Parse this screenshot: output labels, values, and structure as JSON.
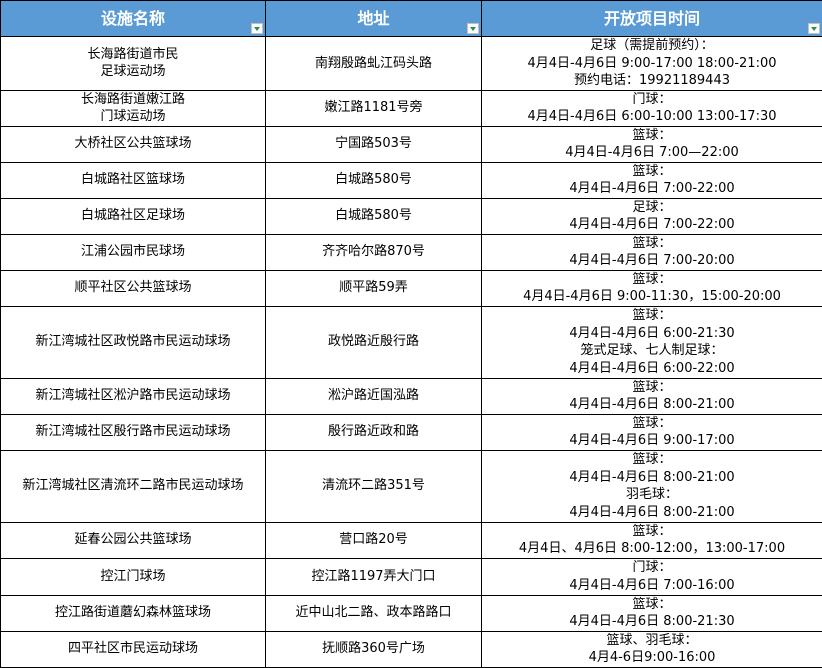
{
  "header": {
    "name": "设施名称",
    "address": "地址",
    "hours": "开放项目时间"
  },
  "header_color": "#5b9bd5",
  "rows": [
    {
      "name": "长海路街道市民\n足球运动场",
      "address": "南翔殷路虬江码头路",
      "hours": "足球（需提前预约）：\n4月4日-4月6日 9:00-17:00 18:00-21:00\n预约电话：19921189443"
    },
    {
      "name": "长海路街道嫩江路\n门球运动场",
      "address": "嫩江路1181号旁",
      "hours": "门球：\n4月4日-4月6日 6:00-10:00 13:00-17:30"
    },
    {
      "name": "大桥社区公共篮球场",
      "address": "宁国路503号",
      "hours": "篮球：\n4月4日-4月6日 7:00—22:00"
    },
    {
      "name": "白城路社区篮球场",
      "address": "白城路580号",
      "hours": "篮球：\n4月4日-4月6日 7:00-22:00"
    },
    {
      "name": "白城路社区足球场",
      "address": "白城路580号",
      "hours": "足球：\n4月4日-4月6日 7:00-22:00"
    },
    {
      "name": "江浦公园市民球场",
      "address": "齐齐哈尔路870号",
      "hours": "篮球：\n4月4日-4月6日 7:00-20:00"
    },
    {
      "name": "顺平社区公共篮球场",
      "address": "顺平路59弄",
      "hours": "篮球：\n4月4日-4月6日 9:00-11:30，15:00-20:00"
    },
    {
      "name": "新江湾城社区政悦路市民运动球场",
      "address": "政悦路近殷行路",
      "hours": "篮球：\n4月4日-4月6日 6:00-21:30\n笼式足球、七人制足球：\n4月4日-4月6日 6:00-22:00"
    },
    {
      "name": "新江湾城社区淞沪路市民运动球场",
      "address": "淞沪路近国泓路",
      "hours": "篮球：\n4月4日-4月6日 8:00-21:00"
    },
    {
      "name": "新江湾城社区殷行路市民运动球场",
      "address": "殷行路近政和路",
      "hours": "篮球：\n4月4日-4月6日 9:00-17:00"
    },
    {
      "name": "新江湾城社区清流环二路市民运动球场",
      "address": "清流环二路351号",
      "hours": "篮球：\n4月4日-4月6日 8:00-21:00\n羽毛球：\n4月4日-4月6日 8:00-21:00"
    },
    {
      "name": "延春公园公共篮球场",
      "address": "营口路20号",
      "hours": "篮球：\n4月4日、4月6日 8:00-12:00，13:00-17:00"
    },
    {
      "name": "控江门球场",
      "address": "控江路1197弄大门口",
      "hours": "门球：\n4月4日-4月6日 7:00-16:00"
    },
    {
      "name": "控江路街道蘑幻森林篮球场",
      "address": "近中山北二路、政本路路口",
      "hours": "篮球：\n4月4日-4月6日 8:00-21:30"
    },
    {
      "name": "四平社区市民运动球场",
      "address": "抚顺路360号广场",
      "hours": "篮球、羽毛球：\n4月4-6日9:00-16:00"
    }
  ]
}
